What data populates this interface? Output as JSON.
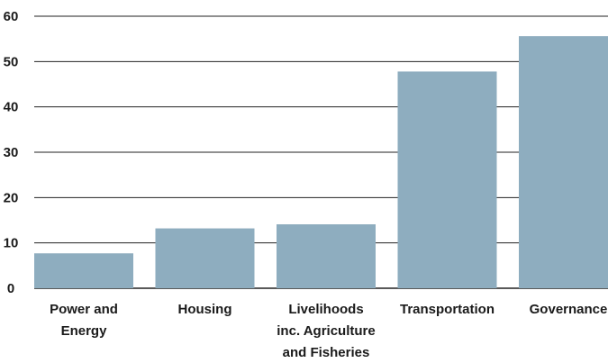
{
  "chart_data": {
    "type": "bar",
    "categories": [
      [
        "Power and",
        "Energy"
      ],
      [
        "Housing"
      ],
      [
        "Livelihoods",
        "inc. Agriculture",
        "and Fisheries"
      ],
      [
        "Transportation"
      ],
      [
        "Governance"
      ]
    ],
    "values": [
      7.7,
      13.2,
      14.1,
      47.8,
      55.6
    ],
    "yticks": [
      0,
      10,
      20,
      30,
      40,
      50,
      60
    ],
    "ylim": [
      0,
      60
    ],
    "title": "",
    "xlabel": "",
    "ylabel": "",
    "grid": true,
    "colors": {
      "bar": "#8eadbf",
      "grid": "#222222",
      "text": "#1a1a1a"
    }
  }
}
